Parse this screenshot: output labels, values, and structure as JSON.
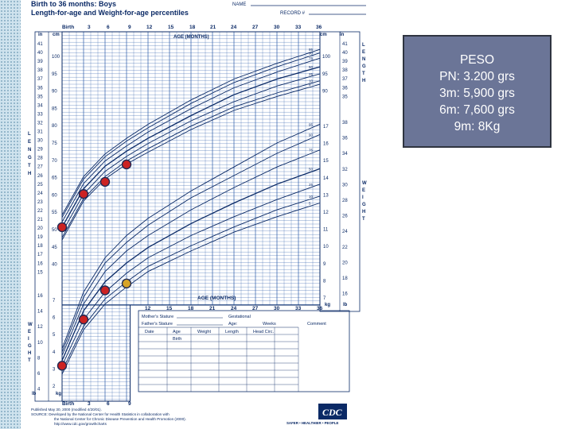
{
  "chart_header": {
    "title_line1": "Birth to 36 months: Boys",
    "title_line2": "Length-for-age and Weight-for-age percentiles",
    "name_label": "NAME",
    "record_label": "RECORD #"
  },
  "peso_box": {
    "lines": [
      "PESO",
      "PN: 3.200 grs",
      "3m: 5,900 grs",
      "6m:  7,600 grs",
      "9m:  8Kg"
    ]
  },
  "labels": {
    "birth": "Birth",
    "age_months": "AGE (MONTHS)",
    "cm": "cm",
    "in": "in",
    "kg": "kg",
    "lb": "lb",
    "length_vertical": "LENGTH",
    "weight_vertical": "WEIGHT",
    "mothers_stature": "Mother's Stature",
    "fathers_stature": "Father's Stature",
    "gestational": "Gestational",
    "age": "Age:",
    "weeks": "Weeks",
    "comment": "Comment",
    "date": "Date",
    "age_col": "Age",
    "weight_col": "Weight",
    "length_col": "Length",
    "head_circ": "Head Circ.",
    "birth_row": "Birth",
    "published": "Published May 30, 2000 (modified 4/20/01).",
    "source_line1": "SOURCE: Developed by the National Center for Health Statistics in collaboration with",
    "source_line2": "the National Center for Chronic Disease Prevention and Health Promotion (2000).",
    "url": "http://www.cdc.gov/growthcharts",
    "cdc_logo": "CDC",
    "safer_healthier": "SAFER • HEALTHIER • PEOPLE"
  },
  "chart_data": {
    "type": "line",
    "title": "Birth to 36 months: Boys — Length-for-age and Weight-for-age percentiles",
    "x_ticks": [
      "Birth",
      "3",
      "6",
      "9",
      "12",
      "15",
      "18",
      "21",
      "24",
      "27",
      "30",
      "33",
      "36"
    ],
    "x_ticks_bottom": [
      "Birth",
      "3",
      "6",
      "9"
    ],
    "x_ticks_lower": [
      "12",
      "15",
      "18",
      "21",
      "24",
      "27",
      "30",
      "33",
      "36"
    ],
    "xlim": [
      0,
      36
    ],
    "percentiles": [
      "95",
      "90",
      "75",
      "50",
      "25",
      "10",
      "5"
    ],
    "length_cm_ticks_left": [
      "100",
      "95",
      "90",
      "85",
      "80",
      "75",
      "70",
      "65",
      "60",
      "55",
      "50",
      "45",
      "40"
    ],
    "length_in_ticks_left": [
      "41",
      "40",
      "39",
      "38",
      "37",
      "36",
      "35",
      "34",
      "33",
      "32",
      "31",
      "30",
      "29",
      "28",
      "27",
      "26",
      "25",
      "24",
      "23",
      "22",
      "21",
      "20",
      "19",
      "18",
      "17",
      "16",
      "15"
    ],
    "length_cm_ticks_right": [
      "100",
      "95",
      "90"
    ],
    "length_in_ticks_right": [
      "41",
      "40",
      "39",
      "38",
      "37",
      "36",
      "35"
    ],
    "weight_kg_ticks_right": [
      "17",
      "16",
      "15",
      "14",
      "13",
      "12",
      "11",
      "10",
      "9",
      "8",
      "7"
    ],
    "weight_lb_ticks_right": [
      "38",
      "36",
      "34",
      "32",
      "30",
      "28",
      "26",
      "24",
      "22",
      "20",
      "18",
      "16"
    ],
    "weight_kg_ticks_left": [
      "7",
      "6",
      "5",
      "4",
      "3",
      "2"
    ],
    "weight_lb_ticks_left": [
      "16",
      "14",
      "12",
      "10",
      "8",
      "6",
      "4"
    ],
    "length_percentile_curves_cm": {
      "age": [
        0,
        3,
        6,
        9,
        12,
        18,
        24,
        30,
        36
      ],
      "p95": [
        54,
        65,
        71.5,
        76,
        80,
        87,
        93,
        97.5,
        101.5
      ],
      "p90": [
        53.3,
        64.3,
        70.7,
        75.2,
        79,
        86,
        92,
        96.5,
        100.5
      ],
      "p75": [
        52,
        63,
        69.5,
        73.8,
        77.8,
        84.5,
        90.5,
        95,
        99
      ],
      "p50": [
        50.5,
        61.5,
        68,
        72.3,
        76,
        82.5,
        88.5,
        93,
        96.5
      ],
      "p25": [
        49,
        60,
        66.5,
        70.8,
        74.5,
        81,
        86.5,
        91,
        94.5
      ],
      "p10": [
        47.5,
        58.7,
        65,
        69.5,
        73,
        79.5,
        85,
        89,
        92.5
      ],
      "p5": [
        46.8,
        58,
        64.3,
        68.6,
        72,
        78.5,
        84,
        88,
        91.5
      ]
    },
    "weight_percentile_curves_kg": {
      "age": [
        0,
        3,
        6,
        9,
        12,
        18,
        24,
        30,
        36
      ],
      "p95": [
        4.2,
        7.5,
        9.5,
        10.8,
        11.8,
        13.4,
        14.8,
        16.2,
        17.3
      ],
      "p90": [
        4,
        7.2,
        9.2,
        10.4,
        11.4,
        13,
        14.3,
        15.6,
        16.7
      ],
      "p75": [
        3.8,
        6.8,
        8.7,
        9.9,
        10.8,
        12.3,
        13.6,
        14.8,
        15.8
      ],
      "p50": [
        3.5,
        6.4,
        8.1,
        9.2,
        10.1,
        11.5,
        12.7,
        13.8,
        14.7
      ],
      "p25": [
        3.2,
        5.9,
        7.5,
        8.6,
        9.5,
        10.8,
        11.9,
        12.9,
        13.8
      ],
      "p10": [
        2.9,
        5.5,
        7.1,
        8.1,
        9,
        10.2,
        11.3,
        12.3,
        13.1
      ],
      "p5": [
        2.7,
        5.3,
        6.8,
        7.8,
        8.7,
        9.9,
        11,
        11.9,
        12.7
      ]
    },
    "marked_points": [
      {
        "series": "length",
        "age": 0,
        "value": 50.5,
        "color": "#cc2222"
      },
      {
        "series": "length",
        "age": 3,
        "value": 60,
        "color": "#cc2222"
      },
      {
        "series": "length",
        "age": 6,
        "value": 63.5,
        "color": "#cc2222"
      },
      {
        "series": "length",
        "age": 9,
        "value": 68.5,
        "color": "#cc2222"
      },
      {
        "series": "weight",
        "age": 0,
        "value": 3.2,
        "color": "#cc2222"
      },
      {
        "series": "weight",
        "age": 3,
        "value": 5.9,
        "color": "#cc2222"
      },
      {
        "series": "weight",
        "age": 6,
        "value": 7.6,
        "color": "#cc2222"
      },
      {
        "series": "weight",
        "age": 9,
        "value": 8,
        "color": "#d8a428"
      }
    ],
    "colors": {
      "grid": "#2a5aa8",
      "curve": "#0b2a66",
      "marker_red": "#cc2222",
      "marker_yellow": "#d8a428",
      "peso_box": "#6b7597"
    }
  }
}
